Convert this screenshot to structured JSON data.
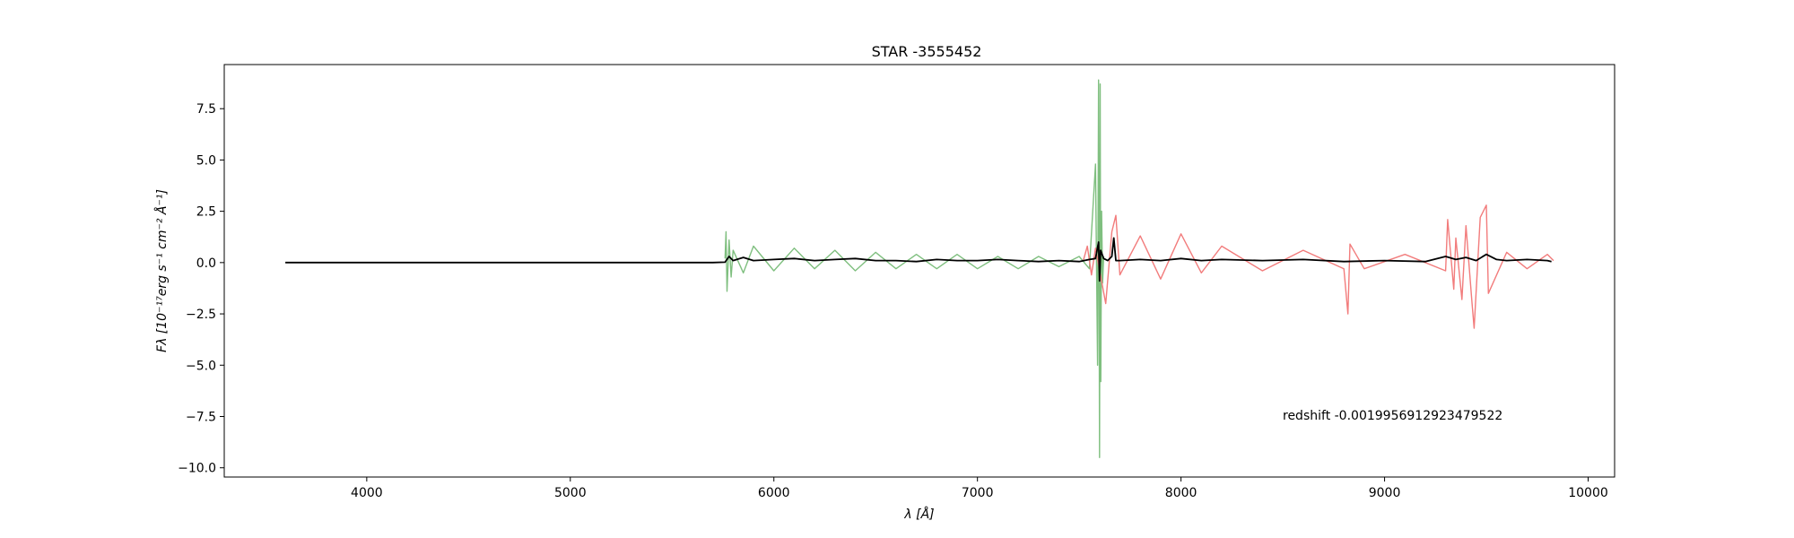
{
  "chart_data": {
    "type": "line",
    "title": "STAR -3555452",
    "xlabel": "λ [Å]",
    "ylabel": "Fλ [10⁻¹⁷erg s⁻¹ cm⁻² Å⁻¹]",
    "xlim": [
      3300,
      10130
    ],
    "ylim": [
      -10.45,
      9.65
    ],
    "xticks": [
      4000,
      5000,
      6000,
      7000,
      8000,
      9000,
      10000
    ],
    "yticks": [
      7.5,
      5.0,
      2.5,
      0.0,
      -2.5,
      -5.0,
      -7.5,
      -10.0
    ],
    "xtick_labels": [
      "4000",
      "5000",
      "6000",
      "7000",
      "8000",
      "9000",
      "10000"
    ],
    "ytick_labels": [
      "7.5",
      "5.0",
      "2.5",
      "0.0",
      "−2.5",
      "−5.0",
      "−7.5",
      "−10.0"
    ],
    "annotation": "redshift -0.0019956912923479522",
    "colors": {
      "blue_arm": "#7fbf7f",
      "red_arm": "#f27c7c",
      "model": "#000000"
    },
    "series": [
      {
        "color": "#7fbf7f",
        "x": [
          5760,
          5765,
          5770,
          5780,
          5790,
          5800,
          5850,
          5900,
          6000,
          6100,
          6200,
          6300,
          6400,
          6500,
          6600,
          6700,
          6800,
          6900,
          7000,
          7100,
          7200,
          7300,
          7400,
          7500,
          7550,
          7580,
          7590,
          7595,
          7600,
          7603,
          7606,
          7610,
          7615,
          7620
        ],
        "y": [
          0.2,
          1.5,
          -1.4,
          1.1,
          -0.7,
          0.6,
          -0.5,
          0.8,
          -0.4,
          0.7,
          -0.3,
          0.6,
          -0.4,
          0.5,
          -0.3,
          0.4,
          -0.3,
          0.4,
          -0.3,
          0.3,
          -0.3,
          0.3,
          -0.2,
          0.3,
          -0.3,
          4.8,
          -5.0,
          8.9,
          -9.5,
          8.7,
          -5.8,
          2.5,
          -1.0,
          0.3
        ]
      },
      {
        "color": "#f27c7c",
        "x": [
          7520,
          7540,
          7560,
          7580,
          7630,
          7660,
          7680,
          7700,
          7800,
          7900,
          8000,
          8100,
          8200,
          8400,
          8600,
          8800,
          8820,
          8830,
          8900,
          9100,
          9300,
          9310,
          9340,
          9350,
          9380,
          9400,
          9430,
          9440,
          9470,
          9500,
          9510,
          9600,
          9700,
          9800,
          9830
        ],
        "y": [
          0.1,
          0.8,
          -0.6,
          0.7,
          -2.0,
          1.5,
          2.3,
          -0.6,
          1.3,
          -0.8,
          1.4,
          -0.5,
          0.8,
          -0.4,
          0.6,
          -0.3,
          -2.5,
          0.9,
          -0.3,
          0.4,
          -0.4,
          2.1,
          -1.3,
          1.2,
          -1.8,
          1.8,
          -2.0,
          -3.2,
          2.2,
          2.8,
          -1.5,
          0.5,
          -0.3,
          0.4,
          0.1
        ]
      },
      {
        "color": "#000000",
        "x": [
          3600,
          5700,
          5760,
          5780,
          5800,
          5850,
          5900,
          6000,
          6100,
          6200,
          6300,
          6400,
          6500,
          6600,
          6700,
          6800,
          6900,
          7000,
          7100,
          7200,
          7300,
          7400,
          7500,
          7550,
          7580,
          7595,
          7600,
          7605,
          7620,
          7640,
          7660,
          7670,
          7680,
          7700,
          7800,
          7900,
          8000,
          8100,
          8200,
          8400,
          8600,
          8800,
          9000,
          9200,
          9300,
          9350,
          9400,
          9450,
          9500,
          9550,
          9600,
          9700,
          9800,
          9820
        ],
        "y": [
          0.0,
          0.0,
          0.02,
          0.3,
          0.1,
          0.25,
          0.1,
          0.15,
          0.2,
          0.1,
          0.15,
          0.2,
          0.1,
          0.1,
          0.05,
          0.15,
          0.1,
          0.1,
          0.15,
          0.1,
          0.05,
          0.1,
          0.05,
          0.15,
          0.2,
          1.0,
          -0.9,
          0.6,
          0.2,
          0.1,
          0.3,
          1.2,
          0.1,
          0.1,
          0.15,
          0.1,
          0.2,
          0.1,
          0.15,
          0.1,
          0.15,
          0.05,
          0.1,
          0.05,
          0.3,
          0.15,
          0.25,
          0.1,
          0.4,
          0.15,
          0.1,
          0.15,
          0.1,
          0.05
        ]
      }
    ]
  }
}
